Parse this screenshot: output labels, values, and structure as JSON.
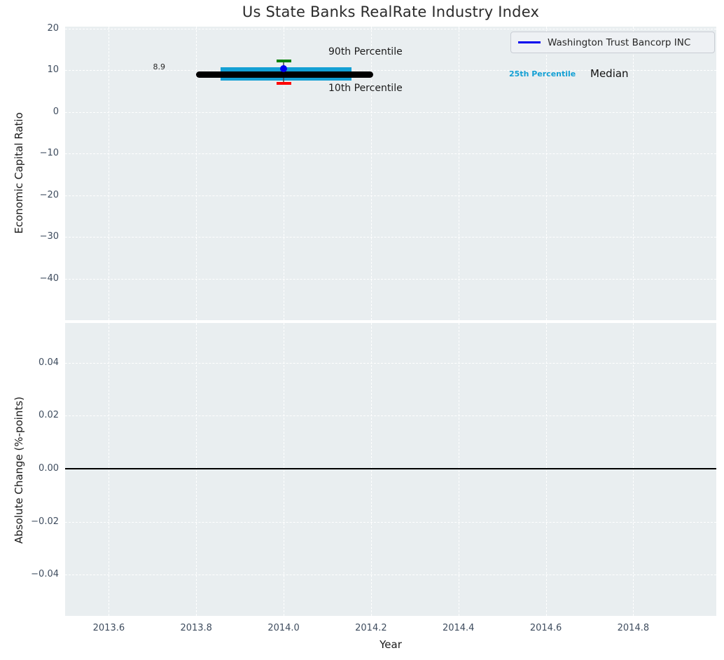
{
  "legend": {
    "label": "Washington Trust Bancorp INC",
    "position": "upper right"
  },
  "annotations": {
    "median_value": "8.9",
    "p90": "90th Percentile",
    "p10": "10th Percentile",
    "p25": "25th Percentile",
    "median": "Median"
  },
  "colors": {
    "figure_bg": "#ffffff",
    "plot_bg": "#e9eef0",
    "grid": "#ffffff",
    "tick": "#3e4c5e",
    "text": "#262626",
    "cyan_25th": "#14a0d4",
    "green_90th": "#008000",
    "red_10th": "#ff0000",
    "blue_company": "#0000ee",
    "black_median": "#000000"
  },
  "chart_data": [
    {
      "type": "scatter",
      "title": "Us State Banks RealRate Industry Index",
      "xlabel": "",
      "ylabel": "Economic Capital Ratio",
      "xlim": [
        2013.5,
        2014.99
      ],
      "ylim": [
        -50,
        20.5
      ],
      "ytick_values": [
        20,
        10,
        0,
        -10,
        -20,
        -30,
        -40
      ],
      "ytick_labels": [
        "20",
        "10",
        "0",
        "−10",
        "−20",
        "−30",
        "−40"
      ],
      "grid": "dashed-white",
      "legend_entries": [
        "Washington Trust Bancorp INC"
      ],
      "legend_position": "upper right",
      "company_point": {
        "name": "Washington Trust Bancorp INC",
        "x": 2014.0,
        "y": 10.4,
        "color": "#0000ee"
      },
      "median": {
        "value": 8.9,
        "x_span": [
          2013.8,
          2014.205
        ],
        "label": "8.9",
        "color": "#000000"
      },
      "percentile_25_band": {
        "x_span": [
          2013.855,
          2014.155
        ],
        "y_range": [
          7.6,
          10.7
        ],
        "color": "#14a0d4"
      },
      "percentile_90": {
        "x": 2014.0,
        "y": 12.3,
        "color": "#008000"
      },
      "percentile_10": {
        "x": 2014.0,
        "y": 6.9,
        "color": "#ff0000"
      }
    },
    {
      "type": "line",
      "title": "",
      "xlabel": "Year",
      "ylabel": "Absolute Change (%-points)",
      "xlim": [
        2013.5,
        2014.99
      ],
      "ylim": [
        -0.0555,
        0.055
      ],
      "ytick_values": [
        0.04,
        0.02,
        0,
        -0.02,
        -0.04
      ],
      "ytick_labels": [
        "0.04",
        "0.02",
        "0.00",
        "−0.02",
        "−0.04"
      ],
      "xtick_values": [
        2013.6,
        2013.8,
        2014.0,
        2014.2,
        2014.4,
        2014.6,
        2014.8
      ],
      "xtick_labels": [
        "2013.6",
        "2013.8",
        "2014.0",
        "2014.2",
        "2014.4",
        "2014.6",
        "2014.8"
      ],
      "zero_line": {
        "y": 0.0,
        "color": "#000000"
      },
      "grid": "dashed-white",
      "series": []
    }
  ]
}
